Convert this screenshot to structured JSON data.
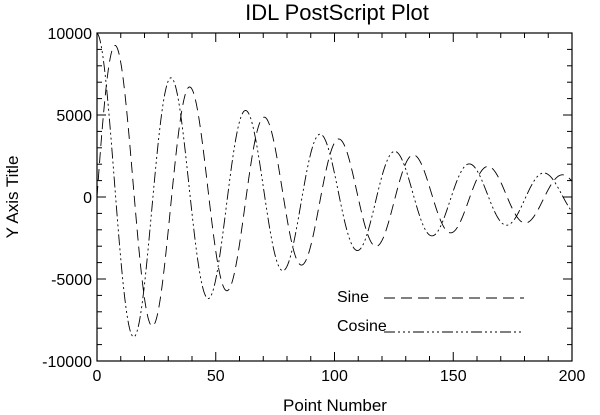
{
  "chart_data": {
    "type": "line",
    "title": "IDL PostScript Plot",
    "xlabel": "Point Number",
    "ylabel": "Y Axis Title",
    "xlim": [
      0,
      200
    ],
    "ylim": [
      -10000,
      10000
    ],
    "x_ticks": [
      "0",
      "50",
      "100",
      "150",
      "200"
    ],
    "y_ticks": [
      "10000",
      "5000",
      "0",
      "-5000",
      "-10000"
    ],
    "x_tick_values": [
      0,
      50,
      100,
      150,
      200
    ],
    "y_tick_values": [
      10000,
      5000,
      0,
      -5000,
      -10000
    ],
    "grid": false,
    "legend_position": "lower-right",
    "series": [
      {
        "name": "Sine",
        "style": "dashed",
        "color": "#000000",
        "amplitude": 10000,
        "decay_per_point": 0.0102,
        "period_points": 31.4,
        "phase": "sine",
        "peaks": [
          [
            8,
            9300
          ],
          [
            39,
            6800
          ],
          [
            70,
            4900
          ],
          [
            102,
            3600
          ],
          [
            133,
            2700
          ],
          [
            164,
            1900
          ],
          [
            196,
            1400
          ]
        ],
        "troughs": [
          [
            23,
            -8000
          ],
          [
            55,
            -5800
          ],
          [
            86,
            -4300
          ],
          [
            117,
            -3100
          ],
          [
            149,
            -2300
          ],
          [
            180,
            -1700
          ]
        ]
      },
      {
        "name": "Cosine",
        "style": "dash-dot-dot",
        "color": "#000000",
        "amplitude": 10000,
        "decay_per_point": 0.0102,
        "period_points": 31.4,
        "phase": "cosine",
        "peaks": [
          [
            0,
            10000
          ],
          [
            31,
            7300
          ],
          [
            63,
            5300
          ],
          [
            94,
            3800
          ],
          [
            126,
            2800
          ],
          [
            157,
            2000
          ],
          [
            188,
            1500
          ]
        ],
        "troughs": [
          [
            16,
            -8500
          ],
          [
            47,
            -6200
          ],
          [
            78,
            -4500
          ],
          [
            110,
            -3300
          ],
          [
            141,
            -2400
          ],
          [
            173,
            -1800
          ]
        ]
      }
    ]
  }
}
